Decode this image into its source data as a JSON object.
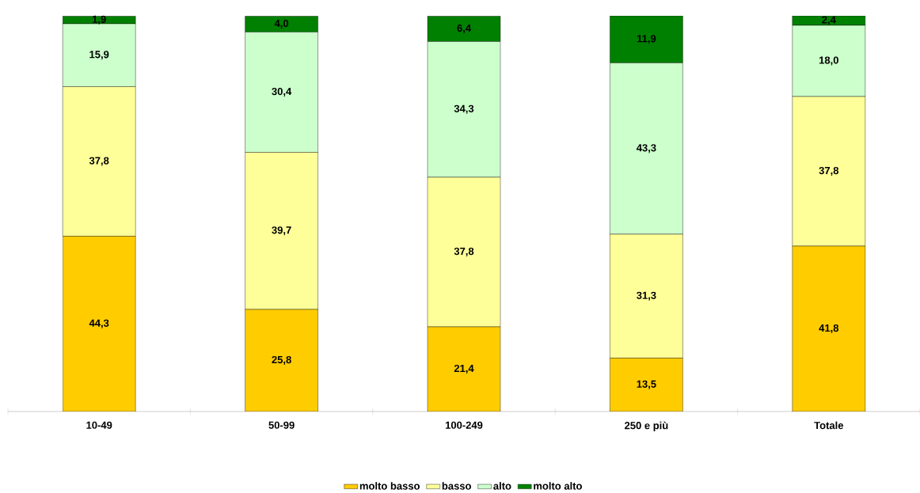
{
  "chart_data": {
    "type": "bar",
    "stacked": true,
    "categories": [
      "10-49",
      "50-99",
      "100-249",
      "250 e più",
      "Totale"
    ],
    "ylim": [
      0,
      100
    ],
    "tick_labels": "x",
    "legend": "bottom",
    "data_labels": false,
    "series": [
      {
        "name": "molto basso",
        "color": "#ffcc00",
        "values": [
          44.3,
          25.8,
          21.4,
          13.5,
          41.8
        ],
        "value_labels": [
          "44,3",
          "25,8",
          "21,4",
          "13,5",
          "41,8"
        ]
      },
      {
        "name": "basso",
        "color": "#ffff99",
        "values": [
          37.8,
          39.7,
          37.8,
          31.3,
          37.8
        ],
        "value_labels": [
          "37,8",
          "39,7",
          "37,8",
          "31,3",
          "37,8"
        ]
      },
      {
        "name": "alto",
        "color": "#ccffcc",
        "values": [
          15.9,
          30.4,
          34.3,
          43.3,
          18.0
        ],
        "value_labels": [
          "15,9",
          "30,4",
          "34,3",
          "43,3",
          "18,0"
        ]
      },
      {
        "name": "molto alto",
        "color": "#008000",
        "values": [
          1.9,
          4.0,
          6.4,
          11.9,
          2.4
        ],
        "value_labels": [
          "1,9",
          "4,0",
          "6,4",
          "11,9",
          "2,4"
        ]
      }
    ]
  }
}
